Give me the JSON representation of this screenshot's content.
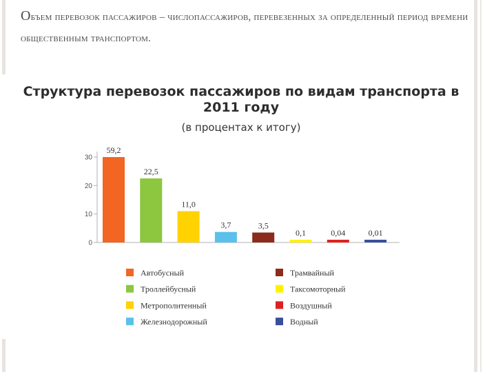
{
  "slide": {
    "title_cap": "О",
    "title_rest": "бъем перевозок пассажиров – числопассажиров, перевезенных за определенный период времени общественным транспортом."
  },
  "chart_data": {
    "type": "bar",
    "title": "Структура перевозок пассажиров по видам транспорта в 2011 году",
    "subtitle": "(в процентах к итогу)",
    "yticks": [
      0,
      10,
      20,
      30
    ],
    "ylim": [
      0,
      30
    ],
    "grid": false,
    "legend_position": "bottom",
    "categories": [
      "Автобусный",
      "Троллейбусный",
      "Метрополитенный",
      "Железнодорожный",
      "Трамвайный",
      "Таксомоторный",
      "Воздушный",
      "Водный"
    ],
    "values": [
      59.2,
      22.5,
      11.0,
      3.7,
      3.5,
      0.1,
      0.04,
      0.01
    ],
    "value_labels": [
      "59,2",
      "22,5",
      "11,0",
      "3,7",
      "3,5",
      "0,1",
      "0,04",
      "0,01"
    ],
    "colors": [
      "#f26522",
      "#8dc63f",
      "#ffd200",
      "#5bc0eb",
      "#8b2c1c",
      "#fff200",
      "#e02020",
      "#3a4f9a"
    ]
  }
}
